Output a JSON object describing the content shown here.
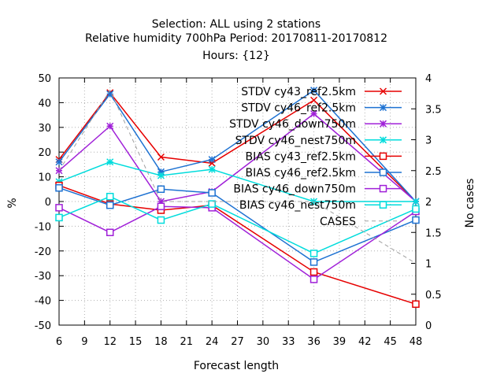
{
  "chart_data": {
    "type": "line",
    "title_lines": [
      "Selection: ALL using     2 stations",
      "Relative humidity 700hPa   Period: 20170811-20170812",
      "Hours: {12}"
    ],
    "xlabel": "Forecast length",
    "ylabel": "%",
    "y2label": "No cases",
    "xlim": [
      6,
      48
    ],
    "ylim": [
      -50,
      50
    ],
    "y2lim": [
      0,
      4
    ],
    "xticks": [
      "6",
      "9",
      "12",
      "15",
      "18",
      "21",
      "24",
      "27",
      "30",
      "33",
      "36",
      "39",
      "42",
      "45",
      "48"
    ],
    "yticks": [
      "50",
      "40",
      "30",
      "20",
      "10",
      "0",
      "-10",
      "-20",
      "-30",
      "-40",
      "-50"
    ],
    "y2ticks": [
      "4",
      "3.5",
      "3",
      "2.5",
      "2",
      "1.5",
      "1",
      "0.5",
      "0"
    ],
    "grid": true,
    "legend_position": "top-right",
    "x": [
      6,
      12,
      18,
      24,
      36,
      48
    ],
    "series": [
      {
        "name": "STDV cy43_ref2.5km",
        "color": "#e60000",
        "marker": "x",
        "axis": "y1",
        "values": [
          17,
          44,
          18,
          15.5,
          41,
          0
        ]
      },
      {
        "name": "STDV cy46_ref2.5km",
        "color": "#1e72d2",
        "marker": "star",
        "axis": "y1",
        "values": [
          16,
          43.5,
          12,
          17,
          45,
          0
        ]
      },
      {
        "name": "STDV cy46_down750m",
        "color": "#a020d8",
        "marker": "star",
        "axis": "y1",
        "values": [
          12.5,
          30.5,
          0,
          4,
          35.5,
          0
        ]
      },
      {
        "name": "STDV cy46_nest750m",
        "color": "#00dcdc",
        "marker": "star",
        "axis": "y1",
        "values": [
          8,
          16,
          10.5,
          13,
          0,
          0
        ]
      },
      {
        "name": "BIAS cy43_ref2.5km",
        "color": "#e60000",
        "marker": "square",
        "axis": "y1",
        "values": [
          6.5,
          -1,
          -3.5,
          -1.5,
          -28.5,
          -41.5
        ]
      },
      {
        "name": "BIAS cy46_ref2.5km",
        "color": "#1e72d2",
        "marker": "square",
        "axis": "y1",
        "values": [
          5.5,
          -1.5,
          5,
          3.5,
          -24.5,
          -7.5
        ]
      },
      {
        "name": "BIAS cy46_down750m",
        "color": "#a020d8",
        "marker": "square",
        "axis": "y1",
        "values": [
          -2.5,
          -12.5,
          -2,
          -2.5,
          -31.5,
          -4
        ]
      },
      {
        "name": "BIAS cy46_nest750m",
        "color": "#00dcdc",
        "marker": "square",
        "axis": "y1",
        "values": [
          -6.5,
          2,
          -7.5,
          -1,
          -21,
          -3
        ]
      },
      {
        "name": "CASES",
        "color": "#a0a0a0",
        "marker": "none",
        "dash": true,
        "axis": "y2",
        "values": [
          2.5,
          3.8,
          2,
          2,
          2,
          1
        ]
      }
    ]
  }
}
